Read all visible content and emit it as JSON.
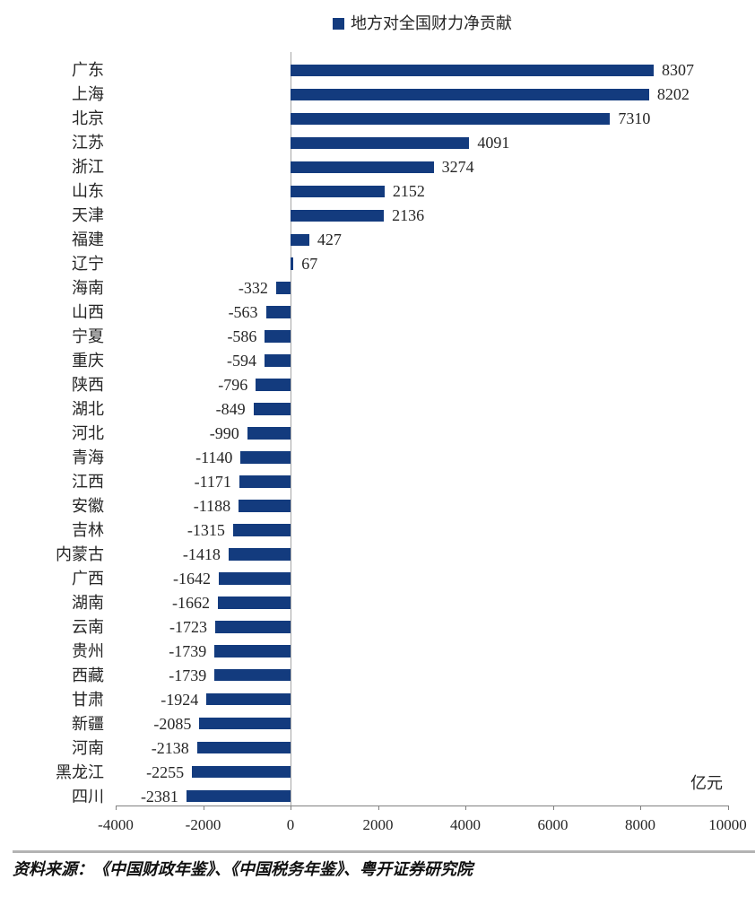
{
  "legend": {
    "label": "地方对全国财力净贡献"
  },
  "chart_data": {
    "type": "bar",
    "orientation": "horizontal",
    "title": "地方对全国财力净贡献",
    "categories": [
      "广东",
      "上海",
      "北京",
      "江苏",
      "浙江",
      "山东",
      "天津",
      "福建",
      "辽宁",
      "海南",
      "山西",
      "宁夏",
      "重庆",
      "陕西",
      "湖北",
      "河北",
      "青海",
      "江西",
      "安徽",
      "吉林",
      "内蒙古",
      "广西",
      "湖南",
      "云南",
      "贵州",
      "西藏",
      "甘肃",
      "新疆",
      "河南",
      "黑龙江",
      "四川"
    ],
    "values": [
      8307,
      8202,
      7310,
      4091,
      3274,
      2152,
      2136,
      427,
      67,
      -332,
      -563,
      -586,
      -594,
      -796,
      -849,
      -990,
      -1140,
      -1171,
      -1188,
      -1315,
      -1418,
      -1642,
      -1662,
      -1723,
      -1739,
      -1739,
      -1924,
      -2085,
      -2138,
      -2255,
      -2381
    ],
    "unit_label": "亿元",
    "x_ticks": [
      -4000,
      -2000,
      0,
      2000,
      4000,
      6000,
      8000,
      10000
    ],
    "xlim": [
      -4000,
      10000
    ],
    "bar_color": "#133B7E",
    "axis_color": "#808080",
    "zero_line_color": "#a6a6a6",
    "text_color": "#262626",
    "legend_position": "top-center",
    "grid": false,
    "value_labels": true
  },
  "footer": {
    "source_text": "资料来源：《中国财政年鉴》、《中国税务年鉴》、粤开证券研究院"
  }
}
